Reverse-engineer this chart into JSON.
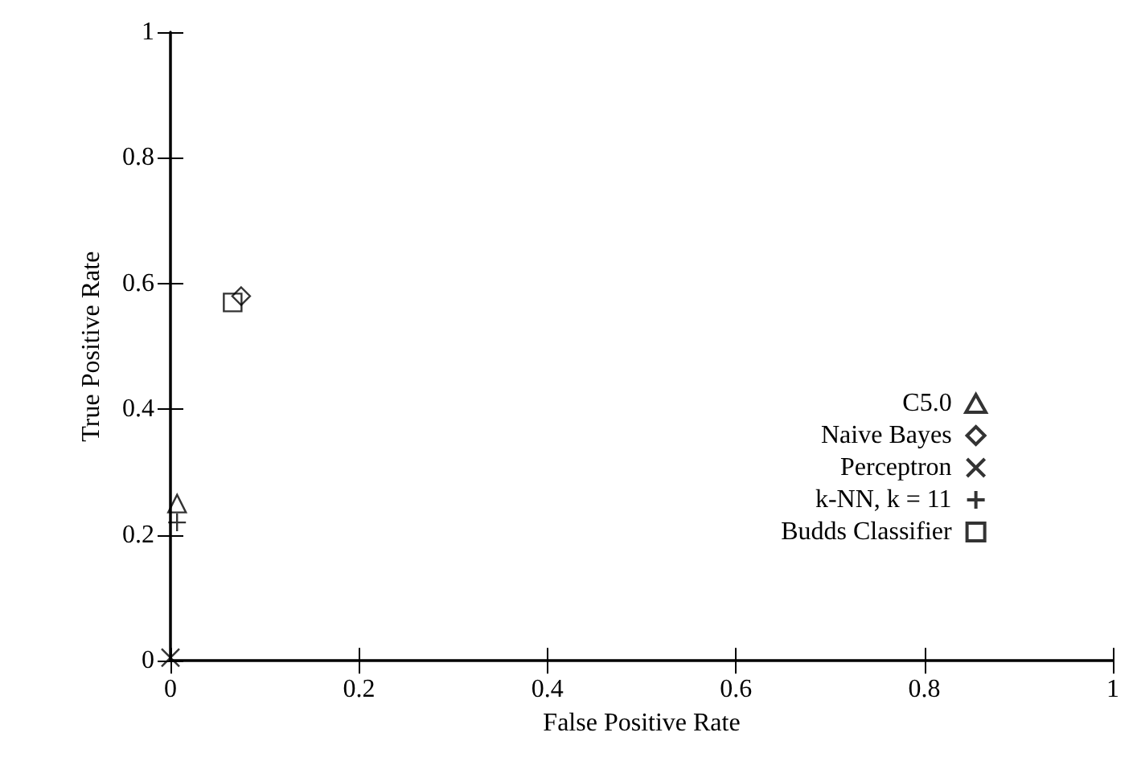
{
  "chart_data": {
    "type": "scatter",
    "xlabel": "False Positive Rate",
    "ylabel": "True Positive Rate",
    "xlim": [
      0,
      1
    ],
    "ylim": [
      0,
      1
    ],
    "xticks": [
      0,
      0.2,
      0.4,
      0.6,
      0.8,
      1
    ],
    "yticks": [
      0,
      0.2,
      0.4,
      0.6,
      0.8,
      1
    ],
    "grid": false,
    "legend": "right",
    "series": [
      {
        "name": "C5.0",
        "color": "#000000",
        "marker": "triangle",
        "x": [
          0.007
        ],
        "values": [
          0.25
        ]
      },
      {
        "name": "Naive Bayes",
        "color": "#000000",
        "marker": "diamond",
        "x": [
          0.075
        ],
        "values": [
          0.58
        ]
      },
      {
        "name": "Perceptron",
        "color": "#000000",
        "marker": "cross",
        "x": [
          0.0
        ],
        "values": [
          0.005
        ]
      },
      {
        "name": "k-NN, k = 11",
        "color": "#000000",
        "marker": "plus",
        "x": [
          0.007
        ],
        "values": [
          0.22
        ]
      },
      {
        "name": "Budds Classifier",
        "color": "#000000",
        "marker": "square",
        "x": [
          0.066
        ],
        "values": [
          0.57
        ]
      }
    ]
  }
}
